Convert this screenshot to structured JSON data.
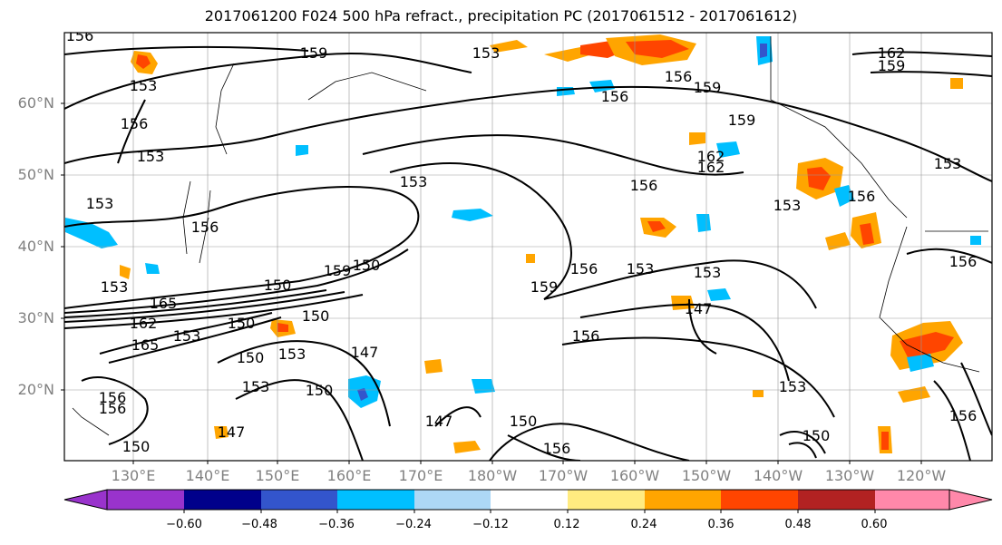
{
  "title": "2017061200 F024 500 hPa refract., precipitation PC (2017061512 - 2017061612)",
  "lat_labels": [
    "60°N",
    "50°N",
    "40°N",
    "30°N",
    "20°N"
  ],
  "lon_labels": [
    "130°E",
    "140°E",
    "150°E",
    "160°E",
    "170°E",
    "180°W",
    "170°W",
    "160°W",
    "150°W",
    "140°W",
    "130°W",
    "120°W"
  ],
  "contour_labels": [
    "156",
    "159",
    "153",
    "153",
    "162",
    "159",
    "156",
    "156",
    "159",
    "159",
    "156",
    "153",
    "153",
    "156",
    "153",
    "156",
    "153",
    "153",
    "156",
    "162",
    "156",
    "153",
    "153",
    "150",
    "159",
    "150",
    "153",
    "165",
    "162",
    "165",
    "153",
    "150",
    "150",
    "150",
    "156",
    "153",
    "159",
    "156",
    "147",
    "147",
    "150",
    "153",
    "156",
    "156",
    "153",
    "147",
    "147",
    "150",
    "156",
    "150",
    "150",
    "162",
    "156"
  ],
  "colorbar": {
    "ticks": [
      "−0.60",
      "−0.48",
      "−0.36",
      "−0.24",
      "−0.12",
      "0.12",
      "0.24",
      "0.36",
      "0.48",
      "0.60"
    ],
    "colors": [
      "#9933cc",
      "#00008b",
      "#3355cc",
      "#00bfff",
      "#add8f6",
      "#ffffff",
      "#ffeb80",
      "#ffa500",
      "#ff4500",
      "#b22222",
      "#ff88aa"
    ]
  }
}
